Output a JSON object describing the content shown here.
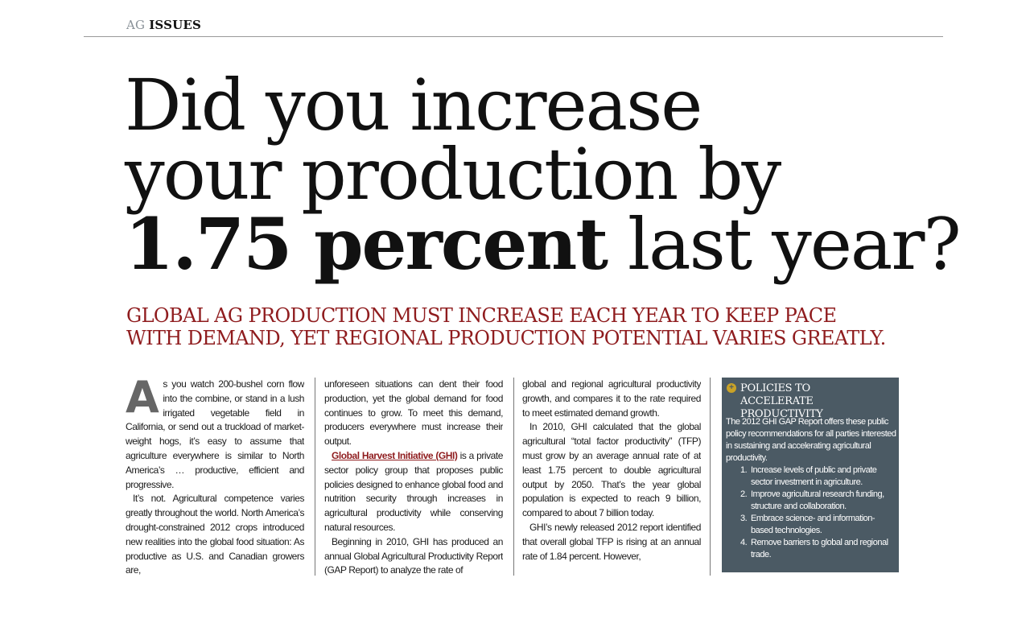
{
  "section_tag": {
    "light": "AG",
    "bold": "ISSUES"
  },
  "headline": {
    "line1": "Did you increase",
    "line2": "your production by",
    "line3_bold": "1.75 percent",
    "line3_rest": " last year?"
  },
  "deck": {
    "line1": "Global ag production must increase each year to keep pace",
    "line2": "with demand, yet regional production potential varies greatly."
  },
  "article": {
    "dropcap": "A",
    "col1": {
      "p1": "s you watch 200-bushel corn flow into the combine, or stand in a lush irrigated vegetable field in California, or send out a truckload of market-weight hogs, it’s easy to assume that agriculture everywhere is similar to North America’s … productive, efficient and progressive.",
      "p2": "It’s not. Agricultural competence varies greatly throughout the world. North America’s drought-constrained 2012 crops introduced new realities into the global food situation: As productive as U.S. and Canadian growers are,"
    },
    "col2": {
      "p1": "unforeseen situations can dent their food production, yet the global demand for food continues to grow. To meet this demand, producers everywhere must increase their output.",
      "p2_link": "Global Harvest Initiative (GHI)",
      "p2_rest": " is a private sector policy group that proposes public policies designed to enhance global food and nutrition security through increases in agricultural productivity while conserving natural resources.",
      "p3": "Beginning in 2010, GHI has produced an annual Global Agricultural Productivity Report (GAP Report) to analyze the rate of"
    },
    "col3": {
      "p1": "global and regional agricultural productivity growth, and compares it to the rate required to meet estimated demand growth.",
      "p2": "In 2010, GHI calculated that the global agricultural “total factor productivity” (TFP) must grow by an average annual rate of at least 1.75 percent to double agricultural output by 2050. That’s the year global population is expected to reach 9 billion, compared to about 7 billion today.",
      "p3": "GHI’s newly released 2012 report identified that overall global TFP is rising at an annual rate of 1.84 percent. However,"
    }
  },
  "sidebar": {
    "icon": "plus-circle-icon",
    "title_line1": "Policies to",
    "title_line2": "accelerate productivity",
    "intro": "The 2012 GHI GAP Report offers these public policy recommendations for all parties interested in sustaining and accelerating agricultural productivity.",
    "items": [
      {
        "num": "1.",
        "text": "Increase levels of public and private sector investment in agriculture."
      },
      {
        "num": "2.",
        "text": "Improve agricultural research funding, structure and collaboration."
      },
      {
        "num": "3.",
        "text": "Embrace science- and information-based technologies."
      },
      {
        "num": "4.",
        "text": "Remove barriers to global and regional trade."
      }
    ]
  },
  "colors": {
    "deck_red": "#8f1c1e",
    "sidebar_bg": "#4b5a64",
    "icon_gold": "#c9a227"
  }
}
